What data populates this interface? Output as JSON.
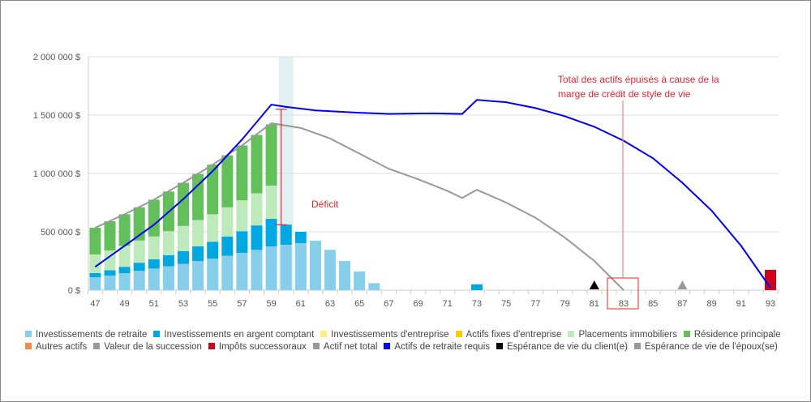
{
  "chart_data": {
    "type": "bar",
    "title": "",
    "xlabel": "",
    "ylabel": "",
    "ylim": [
      0,
      2000000
    ],
    "y_ticks": [
      "0 $",
      "500 000 $",
      "1 000 000 $",
      "1 500 000 $",
      "2 000 000 $"
    ],
    "y_tick_values": [
      0,
      500000,
      1000000,
      1500000,
      2000000
    ],
    "x_range": [
      47,
      93
    ],
    "x_tick_labels": [
      "47",
      "49",
      "51",
      "53",
      "55",
      "57",
      "59",
      "61",
      "63",
      "65",
      "67",
      "69",
      "71",
      "73",
      "75",
      "77",
      "79",
      "81",
      "83",
      "85",
      "87",
      "89",
      "91",
      "93"
    ],
    "grid": true,
    "legend_position": "bottom",
    "stacked_series": [
      {
        "name": "Investissements de retraite",
        "color": "#87ceeb",
        "points": [
          [
            47,
            111000
          ],
          [
            48,
            125000
          ],
          [
            49,
            145000
          ],
          [
            50,
            165000
          ],
          [
            51,
            185000
          ],
          [
            52,
            205000
          ],
          [
            53,
            225000
          ],
          [
            54,
            250000
          ],
          [
            55,
            270000
          ],
          [
            56,
            295000
          ],
          [
            57,
            320000
          ],
          [
            58,
            345000
          ],
          [
            59,
            375000
          ],
          [
            60,
            389000
          ],
          [
            61,
            403000
          ],
          [
            62,
            424000
          ],
          [
            63,
            345000
          ],
          [
            64,
            250000
          ],
          [
            65,
            160000
          ],
          [
            66,
            60000
          ]
        ]
      },
      {
        "name": "Investissements en argent comptant",
        "color": "#00a8e1",
        "points": [
          [
            47,
            35000
          ],
          [
            48,
            45000
          ],
          [
            49,
            55000
          ],
          [
            50,
            70000
          ],
          [
            51,
            80000
          ],
          [
            52,
            95000
          ],
          [
            53,
            110000
          ],
          [
            54,
            125000
          ],
          [
            55,
            145000
          ],
          [
            56,
            165000
          ],
          [
            57,
            185000
          ],
          [
            58,
            210000
          ],
          [
            59,
            236000
          ],
          [
            60,
            173000
          ],
          [
            61,
            97000
          ],
          [
            73,
            50000
          ]
        ]
      },
      {
        "name": "Investissements d'entreprise",
        "color": "#fff176",
        "points": []
      },
      {
        "name": "Actifs fixes d'entreprise",
        "color": "#ffcc00",
        "points": []
      },
      {
        "name": "Placements immobiliers",
        "color": "#bde9bb",
        "points": [
          [
            47,
            160000
          ],
          [
            48,
            170000
          ],
          [
            49,
            180000
          ],
          [
            50,
            190000
          ],
          [
            51,
            195000
          ],
          [
            52,
            205000
          ],
          [
            53,
            215000
          ],
          [
            54,
            225000
          ],
          [
            55,
            235000
          ],
          [
            56,
            250000
          ],
          [
            57,
            265000
          ],
          [
            58,
            275000
          ],
          [
            59,
            285000
          ]
        ]
      },
      {
        "name": "Résidence principale",
        "color": "#62c05a",
        "points": [
          [
            47,
            229000
          ],
          [
            48,
            250000
          ],
          [
            49,
            270000
          ],
          [
            50,
            285000
          ],
          [
            51,
            315000
          ],
          [
            52,
            340000
          ],
          [
            53,
            370000
          ],
          [
            54,
            395000
          ],
          [
            55,
            425000
          ],
          [
            56,
            445000
          ],
          [
            57,
            470000
          ],
          [
            58,
            500000
          ],
          [
            59,
            524000
          ]
        ]
      },
      {
        "name": "Autres actifs",
        "color": "#f6894a",
        "points": []
      },
      {
        "name": "Valeur de la succession",
        "color": "#999999",
        "points": []
      },
      {
        "name": "Impôts successoraux",
        "color": "#d0021b",
        "points": [
          [
            93,
            174000
          ]
        ]
      }
    ],
    "line_series": [
      {
        "name": "Actif net total",
        "color": "#999999",
        "points": [
          [
            47,
            535000
          ],
          [
            49,
            650000
          ],
          [
            51,
            775000
          ],
          [
            53,
            920000
          ],
          [
            55,
            1075000
          ],
          [
            57,
            1240000
          ],
          [
            59,
            1430000
          ],
          [
            61,
            1390000
          ],
          [
            63,
            1300000
          ],
          [
            65,
            1170000
          ],
          [
            67,
            1040000
          ],
          [
            69,
            950000
          ],
          [
            71,
            850000
          ],
          [
            72,
            790000
          ],
          [
            73,
            860000
          ],
          [
            75,
            750000
          ],
          [
            77,
            620000
          ],
          [
            79,
            450000
          ],
          [
            81,
            250000
          ],
          [
            83,
            0
          ]
        ]
      },
      {
        "name": "Actifs de retraite requis",
        "color": "#0000ee",
        "points": [
          [
            47,
            200000
          ],
          [
            49,
            380000
          ],
          [
            51,
            560000
          ],
          [
            53,
            780000
          ],
          [
            55,
            1020000
          ],
          [
            57,
            1290000
          ],
          [
            59,
            1590000
          ],
          [
            60,
            1570000
          ],
          [
            62,
            1540000
          ],
          [
            65,
            1520000
          ],
          [
            67,
            1510000
          ],
          [
            70,
            1515000
          ],
          [
            72,
            1510000
          ],
          [
            73,
            1630000
          ],
          [
            75,
            1610000
          ],
          [
            77,
            1560000
          ],
          [
            79,
            1490000
          ],
          [
            81,
            1400000
          ],
          [
            83,
            1280000
          ],
          [
            85,
            1130000
          ],
          [
            87,
            920000
          ],
          [
            89,
            680000
          ],
          [
            91,
            380000
          ],
          [
            93,
            20000
          ]
        ]
      }
    ],
    "markers": [
      {
        "name": "Espérance de vie du client(e)",
        "color": "#000000",
        "x": 81
      },
      {
        "name": "Espérance de vie de l'époux(se)",
        "color": "#999999",
        "x": 87
      }
    ],
    "deficit": {
      "label": "Déficit",
      "x": 60,
      "from": 560000,
      "to": 1550000
    },
    "annotation": {
      "line1": "Total des actifs épuisés à cause de la",
      "line2": "marge de crédit de style de vie",
      "x": 83
    }
  },
  "legend": [
    {
      "label": "Investissements de retraite",
      "color": "#87ceeb"
    },
    {
      "label": "Investissements en argent comptant",
      "color": "#00a8e1"
    },
    {
      "label": "Investissements d'entreprise",
      "color": "#fff176"
    },
    {
      "label": "Actifs fixes d'entreprise",
      "color": "#ffcc00"
    },
    {
      "label": "Placements immobiliers",
      "color": "#bde9bb"
    },
    {
      "label": "Résidence principale",
      "color": "#62c05a"
    },
    {
      "label": "Autres actifs",
      "color": "#f6894a"
    },
    {
      "label": "Valeur de la succession",
      "color": "#999999"
    },
    {
      "label": "Impôts successoraux",
      "color": "#d0021b"
    },
    {
      "label": "Actif net total",
      "color": "#999999"
    },
    {
      "label": "Actifs de retraite requis",
      "color": "#0000ee"
    },
    {
      "label": "Espérance de vie du client(e)",
      "color": "#000000"
    },
    {
      "label": "Espérance de vie de l'époux(se)",
      "color": "#999999"
    }
  ]
}
